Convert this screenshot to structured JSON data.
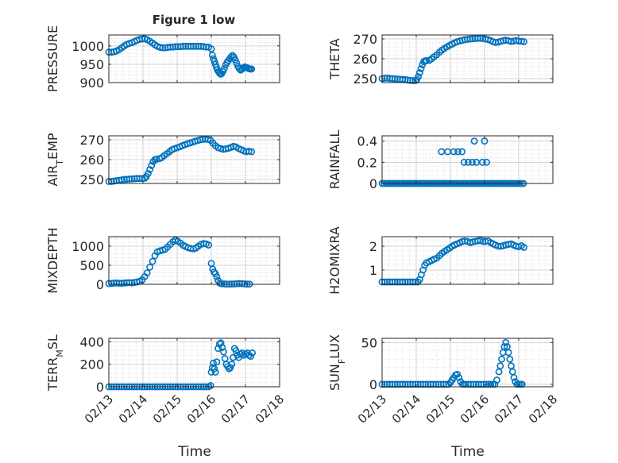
{
  "figure_title": "Figure 1 low",
  "x_axis_label": "Time",
  "x_tick_labels": [
    "02/13",
    "02/14",
    "02/15",
    "02/16",
    "02/17",
    "02/18"
  ],
  "marker_color": "#0072BD",
  "chart_data": [
    {
      "type": "scatter",
      "title": "Figure 1 low",
      "ylabel": "PRESSURE",
      "xlabel": "",
      "xlim": [
        0,
        5
      ],
      "ylim": [
        900,
        1030
      ],
      "yticks": [
        900,
        950,
        1000
      ],
      "grid": true,
      "x": [
        0.0,
        0.08,
        0.15,
        0.22,
        0.3,
        0.38,
        0.45,
        0.52,
        0.6,
        0.68,
        0.75,
        0.82,
        0.9,
        0.98,
        1.05,
        1.12,
        1.2,
        1.28,
        1.35,
        1.42,
        1.5,
        1.58,
        1.65,
        1.72,
        1.8,
        1.88,
        1.95,
        2.02,
        2.1,
        2.18,
        2.25,
        2.32,
        2.4,
        2.48,
        2.55,
        2.62,
        2.7,
        2.78,
        2.85,
        2.92,
        3.0,
        3.03,
        3.06,
        3.09,
        3.12,
        3.15,
        3.18,
        3.21,
        3.24,
        3.27,
        3.3,
        3.34,
        3.38,
        3.42,
        3.46,
        3.5,
        3.54,
        3.58,
        3.62,
        3.66,
        3.7,
        3.74,
        3.78,
        3.82,
        3.86,
        3.9,
        3.94,
        3.98,
        4.02,
        4.06,
        4.1,
        4.14,
        4.18
      ],
      "y": [
        983,
        983,
        984,
        986,
        990,
        995,
        1000,
        1004,
        1007,
        1009,
        1012,
        1015,
        1018,
        1019,
        1020,
        1017,
        1013,
        1008,
        1003,
        999,
        996,
        995,
        995,
        996,
        997,
        997,
        998,
        998,
        998,
        999,
        999,
        999,
        999,
        999,
        999,
        999,
        999,
        998,
        997,
        997,
        992,
        975,
        965,
        958,
        950,
        942,
        935,
        930,
        926,
        923,
        924,
        930,
        938,
        948,
        955,
        960,
        965,
        970,
        974,
        970,
        962,
        953,
        944,
        938,
        934,
        937,
        940,
        943,
        941,
        940,
        938,
        937,
        937
      ]
    },
    {
      "type": "scatter",
      "ylabel": "THETA",
      "xlabel": "",
      "xlim": [
        0,
        5
      ],
      "ylim": [
        248,
        272
      ],
      "yticks": [
        250,
        260,
        270
      ],
      "grid": true,
      "x": [
        0.0,
        0.08,
        0.15,
        0.22,
        0.3,
        0.38,
        0.45,
        0.52,
        0.6,
        0.68,
        0.75,
        0.82,
        0.9,
        0.98,
        1.02,
        1.06,
        1.1,
        1.14,
        1.18,
        1.22,
        1.26,
        1.3,
        1.38,
        1.45,
        1.52,
        1.6,
        1.68,
        1.75,
        1.82,
        1.9,
        1.98,
        2.05,
        2.12,
        2.2,
        2.28,
        2.35,
        2.42,
        2.5,
        2.58,
        2.65,
        2.72,
        2.8,
        2.88,
        2.95,
        3.02,
        3.1,
        3.18,
        3.25,
        3.32,
        3.4,
        3.48,
        3.55,
        3.62,
        3.7,
        3.78,
        3.85,
        3.92,
        4.0,
        4.08,
        4.15
      ],
      "y": [
        250,
        250.2,
        250.3,
        250.1,
        250,
        249.9,
        249.8,
        249.7,
        249.6,
        249.5,
        249.3,
        249.1,
        249,
        249,
        249.6,
        251,
        253,
        255,
        257,
        258.5,
        259,
        259,
        259.2,
        260,
        261,
        262,
        263.3,
        264.3,
        265.2,
        266,
        266.8,
        267.4,
        268,
        268.6,
        269,
        269.3,
        269.6,
        269.8,
        270,
        270.1,
        270.2,
        270.3,
        270.3,
        270.2,
        270,
        269.7,
        269.2,
        268.6,
        268.2,
        268.4,
        268.8,
        269.1,
        269.4,
        269.1,
        268.7,
        268.9,
        269.2,
        268.9,
        268.8,
        268.6
      ]
    },
    {
      "type": "scatter",
      "ylabel": "AIR_TEMP",
      "xlabel": "",
      "xlim": [
        0,
        5
      ],
      "ylim": [
        248,
        272
      ],
      "yticks": [
        250,
        260,
        270
      ],
      "grid": true,
      "x": [
        0.0,
        0.08,
        0.15,
        0.22,
        0.3,
        0.38,
        0.45,
        0.52,
        0.6,
        0.68,
        0.75,
        0.82,
        0.9,
        0.98,
        1.05,
        1.1,
        1.15,
        1.2,
        1.25,
        1.3,
        1.35,
        1.4,
        1.48,
        1.55,
        1.62,
        1.7,
        1.78,
        1.85,
        1.92,
        2.0,
        2.08,
        2.15,
        2.22,
        2.3,
        2.38,
        2.45,
        2.52,
        2.6,
        2.68,
        2.75,
        2.82,
        2.9,
        2.98,
        3.05,
        3.12,
        3.2,
        3.28,
        3.35,
        3.42,
        3.5,
        3.58,
        3.65,
        3.72,
        3.8,
        3.88,
        3.95,
        4.02,
        4.1,
        4.18
      ],
      "y": [
        249,
        249,
        249.2,
        249.4,
        249.6,
        249.8,
        250,
        250.1,
        250.2,
        250.3,
        250.4,
        250.5,
        250.5,
        250.5,
        250.6,
        251.5,
        253,
        255,
        257,
        259,
        260,
        260.2,
        260.5,
        261,
        262,
        263,
        264,
        265,
        265.5,
        266,
        266.5,
        267,
        267.5,
        268,
        268.4,
        268.8,
        269.2,
        269.6,
        270,
        270.2,
        270.3,
        270.2,
        269.7,
        268.3,
        267,
        266,
        265.6,
        265.2,
        265.4,
        265.7,
        266.2,
        266.7,
        266.4,
        265.6,
        265,
        264.4,
        264,
        264.2,
        264
      ]
    },
    {
      "type": "scatter",
      "ylabel": "RAINFALL",
      "xlabel": "",
      "xlim": [
        0,
        5
      ],
      "ylim": [
        0,
        0.45
      ],
      "yticks": [
        0,
        0.2,
        0.4
      ],
      "grid": true,
      "x": [
        0.0,
        0.06,
        0.12,
        0.18,
        0.24,
        0.3,
        0.36,
        0.42,
        0.48,
        0.54,
        0.6,
        0.66,
        0.72,
        0.78,
        0.84,
        0.9,
        0.96,
        1.02,
        1.08,
        1.14,
        1.2,
        1.26,
        1.32,
        1.38,
        1.44,
        1.5,
        1.56,
        1.62,
        1.68,
        1.74,
        1.8,
        1.86,
        1.92,
        1.98,
        2.04,
        2.1,
        2.16,
        2.22,
        2.28,
        2.34,
        2.4,
        2.46,
        2.52,
        2.58,
        2.64,
        2.7,
        2.76,
        2.82,
        2.88,
        2.94,
        3.0,
        3.06,
        3.12,
        3.18,
        3.24,
        3.3,
        3.36,
        3.42,
        3.48,
        3.54,
        3.6,
        3.66,
        3.72,
        3.78,
        3.84,
        3.9,
        3.96,
        4.02,
        4.08,
        4.14,
        1.74,
        1.92,
        2.1,
        2.22,
        2.34,
        2.52,
        2.64,
        2.4,
        2.76,
        2.94,
        3.06,
        2.7,
        3.0
      ],
      "y": [
        0,
        0,
        0,
        0,
        0,
        0,
        0,
        0,
        0,
        0,
        0,
        0,
        0,
        0,
        0,
        0,
        0,
        0,
        0,
        0,
        0,
        0,
        0,
        0,
        0,
        0,
        0,
        0,
        0,
        0,
        0,
        0,
        0,
        0,
        0,
        0,
        0,
        0,
        0,
        0,
        0,
        0,
        0,
        0,
        0,
        0,
        0,
        0,
        0,
        0,
        0,
        0,
        0,
        0,
        0,
        0,
        0,
        0,
        0,
        0,
        0,
        0,
        0,
        0,
        0,
        0,
        0,
        0,
        0,
        0,
        0.3,
        0.3,
        0.3,
        0.3,
        0.3,
        0.2,
        0.2,
        0.2,
        0.2,
        0.2,
        0.2,
        0.4,
        0.4
      ]
    },
    {
      "type": "scatter",
      "ylabel": "MIXDEPTH",
      "xlabel": "",
      "xlim": [
        0,
        5
      ],
      "ylim": [
        0,
        1250
      ],
      "yticks": [
        0,
        500,
        1000
      ],
      "grid": true,
      "x": [
        0.0,
        0.08,
        0.15,
        0.22,
        0.3,
        0.38,
        0.45,
        0.52,
        0.6,
        0.68,
        0.75,
        0.82,
        0.9,
        0.98,
        1.05,
        1.12,
        1.2,
        1.28,
        1.35,
        1.42,
        1.5,
        1.58,
        1.65,
        1.72,
        1.8,
        1.88,
        1.95,
        2.02,
        2.1,
        2.18,
        2.25,
        2.32,
        2.4,
        2.48,
        2.55,
        2.62,
        2.7,
        2.78,
        2.85,
        2.92,
        3.0,
        3.04,
        3.08,
        3.12,
        3.16,
        3.2,
        3.25,
        3.3,
        3.38,
        3.45,
        3.52,
        3.6,
        3.68,
        3.75,
        3.82,
        3.9,
        3.98,
        4.05,
        4.12
      ],
      "y": [
        20,
        25,
        30,
        35,
        30,
        25,
        35,
        40,
        45,
        40,
        50,
        60,
        80,
        120,
        200,
        300,
        450,
        600,
        750,
        850,
        880,
        900,
        920,
        980,
        1050,
        1120,
        1160,
        1130,
        1080,
        1020,
        990,
        960,
        940,
        930,
        950,
        1000,
        1050,
        1070,
        1060,
        1030,
        550,
        400,
        320,
        280,
        200,
        100,
        30,
        15,
        10,
        5,
        5,
        8,
        10,
        15,
        20,
        15,
        10,
        5,
        5
      ]
    },
    {
      "type": "scatter",
      "ylabel": "H2OMIXRA",
      "xlabel": "",
      "xlim": [
        0,
        5
      ],
      "ylim": [
        0.4,
        2.4
      ],
      "yticks": [
        1,
        2
      ],
      "grid": true,
      "x": [
        0.0,
        0.08,
        0.15,
        0.22,
        0.3,
        0.38,
        0.45,
        0.52,
        0.6,
        0.68,
        0.75,
        0.82,
        0.9,
        0.98,
        1.05,
        1.1,
        1.15,
        1.2,
        1.25,
        1.3,
        1.38,
        1.45,
        1.52,
        1.6,
        1.68,
        1.75,
        1.82,
        1.9,
        1.98,
        2.05,
        2.12,
        2.2,
        2.28,
        2.35,
        2.42,
        2.5,
        2.58,
        2.65,
        2.72,
        2.8,
        2.88,
        2.95,
        3.02,
        3.1,
        3.18,
        3.25,
        3.32,
        3.4,
        3.48,
        3.55,
        3.62,
        3.7,
        3.78,
        3.85,
        3.92,
        4.0,
        4.08,
        4.15
      ],
      "y": [
        0.5,
        0.5,
        0.5,
        0.5,
        0.5,
        0.5,
        0.5,
        0.5,
        0.5,
        0.5,
        0.5,
        0.5,
        0.5,
        0.5,
        0.5,
        0.6,
        0.8,
        1.0,
        1.2,
        1.3,
        1.35,
        1.4,
        1.45,
        1.5,
        1.6,
        1.7,
        1.78,
        1.85,
        1.92,
        2.0,
        2.05,
        2.1,
        2.15,
        2.2,
        2.22,
        2.2,
        2.15,
        2.18,
        2.2,
        2.22,
        2.25,
        2.2,
        2.2,
        2.22,
        2.15,
        2.1,
        2.05,
        2.0,
        2.0,
        2.02,
        2.05,
        2.08,
        2.1,
        2.05,
        2.0,
        1.98,
        2.02,
        1.95
      ]
    },
    {
      "type": "scatter",
      "ylabel": "TERR_MSL",
      "xlabel": "Time",
      "xlim": [
        0,
        5
      ],
      "ylim": [
        0,
        430
      ],
      "yticks": [
        0,
        200,
        400
      ],
      "grid": true,
      "x": [
        0.0,
        0.08,
        0.15,
        0.22,
        0.3,
        0.38,
        0.45,
        0.52,
        0.6,
        0.68,
        0.75,
        0.82,
        0.9,
        0.98,
        1.05,
        1.12,
        1.2,
        1.28,
        1.35,
        1.42,
        1.5,
        1.58,
        1.65,
        1.72,
        1.8,
        1.88,
        1.95,
        2.02,
        2.1,
        2.18,
        2.25,
        2.32,
        2.4,
        2.48,
        2.55,
        2.62,
        2.7,
        2.78,
        2.85,
        2.92,
        2.98,
        3.0,
        3.03,
        3.06,
        3.09,
        3.12,
        3.16,
        3.2,
        3.24,
        3.28,
        3.32,
        3.36,
        3.4,
        3.44,
        3.48,
        3.52,
        3.56,
        3.6,
        3.64,
        3.68,
        3.72,
        3.76,
        3.8,
        3.85,
        3.9,
        3.95,
        4.0,
        4.05,
        4.1,
        4.15,
        4.2
      ],
      "y": [
        0,
        0,
        0,
        0,
        0,
        0,
        0,
        0,
        0,
        0,
        0,
        0,
        0,
        0,
        0,
        0,
        0,
        0,
        0,
        0,
        0,
        0,
        0,
        0,
        0,
        0,
        0,
        0,
        0,
        0,
        0,
        0,
        0,
        0,
        0,
        0,
        0,
        0,
        0,
        0,
        10,
        130,
        170,
        210,
        160,
        130,
        220,
        340,
        380,
        390,
        350,
        310,
        250,
        200,
        180,
        160,
        170,
        200,
        260,
        340,
        320,
        280,
        260,
        290,
        300,
        280,
        290,
        300,
        280,
        270,
        300
      ]
    },
    {
      "type": "scatter",
      "ylabel": "SUN_FLUX",
      "xlabel": "Time",
      "xlim": [
        0,
        5
      ],
      "ylim": [
        -3,
        55
      ],
      "yticks": [
        0,
        50
      ],
      "grid": true,
      "x": [
        0.0,
        0.08,
        0.15,
        0.22,
        0.3,
        0.38,
        0.45,
        0.52,
        0.6,
        0.68,
        0.75,
        0.82,
        0.9,
        0.98,
        1.05,
        1.12,
        1.2,
        1.28,
        1.35,
        1.42,
        1.5,
        1.58,
        1.65,
        1.72,
        1.8,
        1.88,
        1.95,
        2.0,
        2.05,
        2.1,
        2.15,
        2.2,
        2.25,
        2.3,
        2.35,
        2.4,
        2.45,
        2.52,
        2.6,
        2.68,
        2.75,
        2.82,
        2.9,
        2.98,
        3.05,
        3.12,
        3.18,
        3.24,
        3.3,
        3.36,
        3.42,
        3.46,
        3.5,
        3.54,
        3.58,
        3.62,
        3.66,
        3.7,
        3.74,
        3.78,
        3.82,
        3.86,
        3.9,
        3.95,
        4.0,
        4.05,
        4.1
      ],
      "y": [
        0,
        0,
        0,
        0,
        0,
        0,
        0,
        0,
        0,
        0,
        0,
        0,
        0,
        0,
        0,
        0,
        0,
        0,
        0,
        0,
        0,
        0,
        0,
        0,
        0,
        0,
        0,
        2,
        5,
        8,
        11,
        12,
        8,
        3,
        0,
        0,
        0,
        0,
        0,
        0,
        0,
        0,
        0,
        0,
        0,
        0,
        0,
        0,
        0,
        5,
        15,
        22,
        30,
        38,
        45,
        50,
        45,
        38,
        30,
        22,
        15,
        8,
        3,
        0,
        0,
        0,
        0
      ]
    }
  ]
}
